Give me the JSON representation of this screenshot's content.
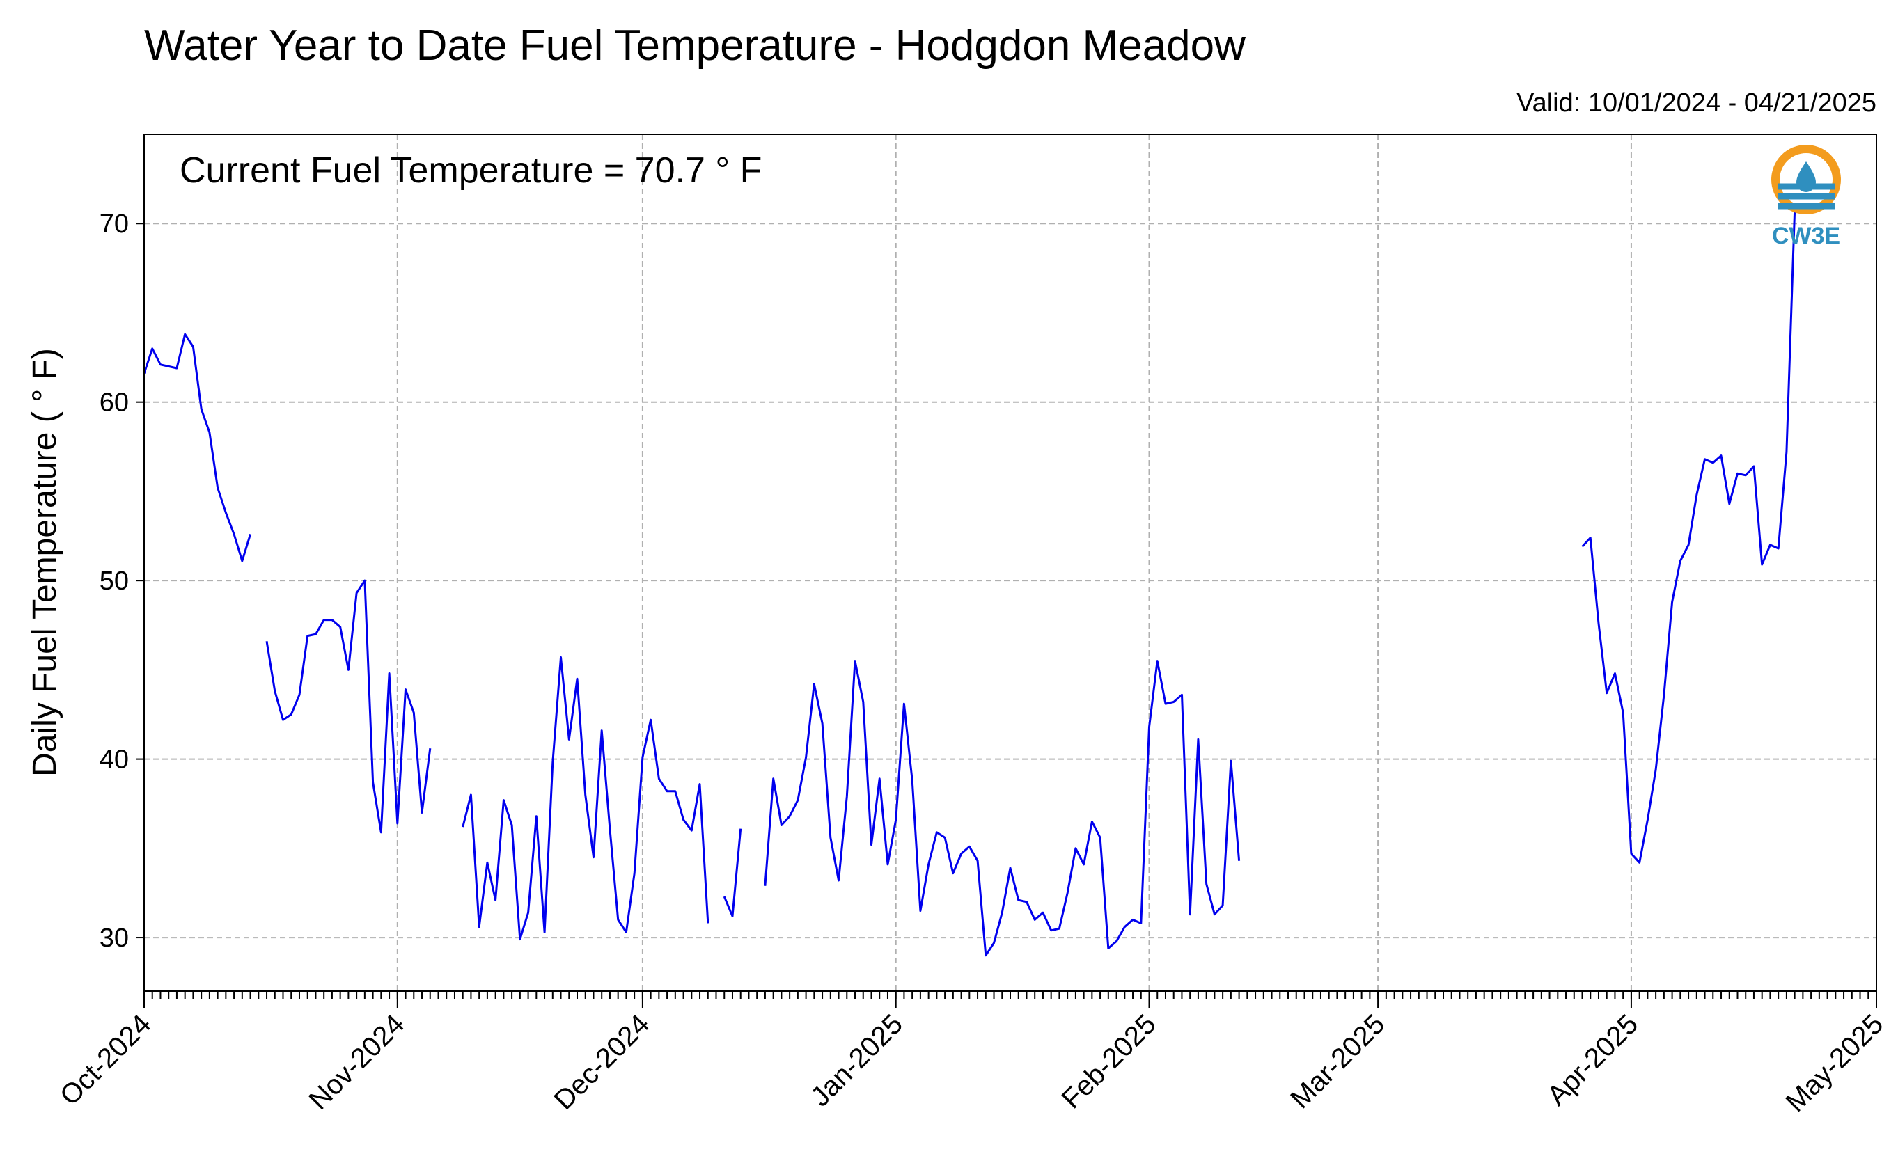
{
  "chart_data": {
    "type": "line",
    "title": "Water Year to Date Fuel Temperature - Hodgdon Meadow",
    "subtitle": "Valid: 10/01/2024 - 04/21/2025",
    "annotation": "Current Fuel Temperature = 70.7  ° F",
    "ylabel": "Daily Fuel Temperature ( ° F)",
    "xlabel": "",
    "ylim": [
      27,
      75
    ],
    "yticks": [
      30,
      40,
      50,
      60,
      70
    ],
    "xlim": [
      "2024-10-01",
      "2025-05-01"
    ],
    "xticks": [
      {
        "date": "2024-10-01",
        "label": "Oct-2024"
      },
      {
        "date": "2024-11-01",
        "label": "Nov-2024"
      },
      {
        "date": "2024-12-01",
        "label": "Dec-2024"
      },
      {
        "date": "2025-01-01",
        "label": "Jan-2025"
      },
      {
        "date": "2025-02-01",
        "label": "Feb-2025"
      },
      {
        "date": "2025-03-01",
        "label": "Mar-2025"
      },
      {
        "date": "2025-04-01",
        "label": "Apr-2025"
      },
      {
        "date": "2025-05-01",
        "label": "May-2025"
      }
    ],
    "grid": true,
    "line_color": "#0000ee",
    "series": [
      {
        "start": "2024-10-01",
        "values": [
          61.6,
          63.0,
          62.1,
          62.0,
          61.9,
          63.8,
          63.1,
          59.6,
          58.3,
          55.2,
          53.8,
          52.6,
          51.1,
          52.6
        ]
      },
      {
        "start": "2024-10-16",
        "values": [
          46.6,
          43.8,
          42.2,
          42.5,
          43.6,
          46.9,
          47.0,
          47.8,
          47.8,
          47.4,
          45.0,
          49.3,
          50.0,
          38.7,
          35.9,
          44.8,
          36.4,
          43.9,
          42.6,
          37.0,
          40.6
        ]
      },
      {
        "start": "2024-11-09",
        "values": [
          36.2,
          38.0,
          30.6,
          34.2,
          32.1,
          37.7,
          36.3,
          29.9,
          31.4,
          36.8,
          30.3,
          39.8,
          45.7,
          41.1,
          44.5,
          38.0,
          34.5,
          41.6,
          36.1,
          31.0,
          30.3,
          33.6,
          40.1,
          42.2,
          38.9,
          38.2,
          38.2,
          36.6,
          36.0,
          38.6,
          30.8
        ]
      },
      {
        "start": "2024-12-11",
        "values": [
          32.3,
          31.2,
          36.1
        ]
      },
      {
        "start": "2024-12-16",
        "values": [
          32.9,
          38.9,
          36.3,
          36.8,
          37.7,
          40.1,
          44.2,
          42.0,
          35.6,
          33.2,
          37.9,
          45.5,
          43.2,
          35.2,
          38.9,
          34.1,
          36.6,
          43.1,
          38.8,
          31.5,
          34.1,
          35.9,
          35.6,
          33.6,
          34.7,
          35.1,
          34.3,
          29.0,
          29.7,
          31.4,
          33.9,
          32.1,
          32.0,
          31.0,
          31.4,
          30.4,
          30.5,
          32.5,
          35.0,
          34.1,
          36.5,
          35.6,
          29.4,
          29.8,
          30.6,
          31.0,
          30.8,
          41.8,
          45.5,
          43.1,
          43.2,
          43.6,
          31.3,
          41.1,
          33.0,
          31.3,
          31.8,
          39.9,
          34.3
        ]
      },
      {
        "start": "2025-03-26",
        "values": [
          51.9,
          52.4,
          47.6,
          43.7,
          44.8,
          42.6,
          34.7,
          34.2,
          36.6,
          39.4,
          43.6,
          48.8,
          51.1,
          52.0,
          54.8,
          56.8,
          56.6,
          57.0,
          54.3,
          56.0,
          55.9,
          56.4,
          50.9,
          52.0,
          51.8,
          57.2,
          70.7
        ]
      }
    ]
  },
  "logo": {
    "text": "CW3E",
    "color": "#2f8fbf",
    "accent": "#f39c1e"
  }
}
